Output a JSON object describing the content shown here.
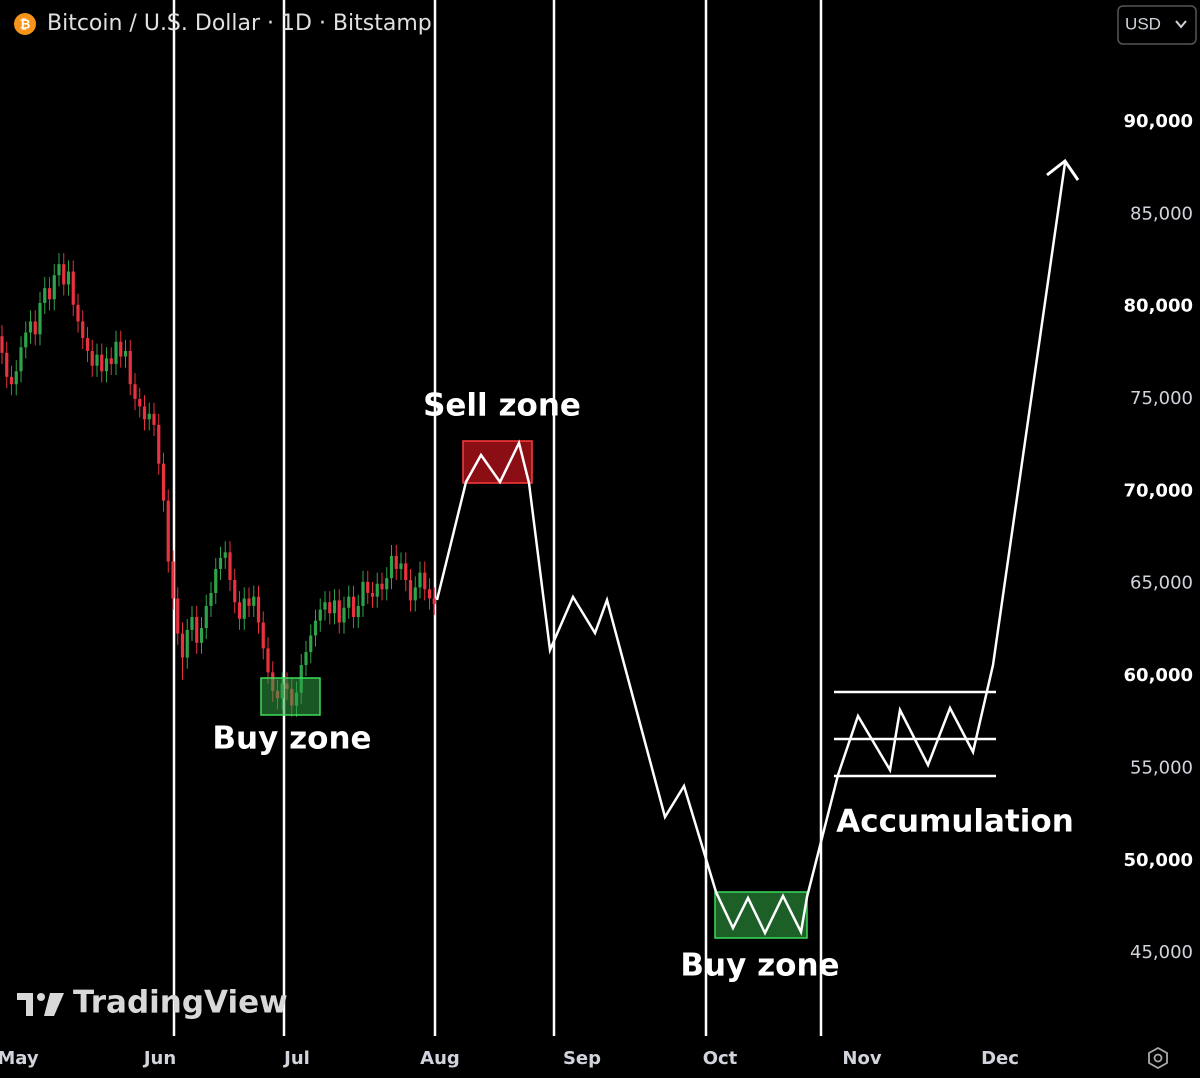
{
  "chart_data": {
    "type": "candlestick",
    "title": "Bitcoin / U.S. Dollar · 1D · Bitstamp",
    "currency": "USD",
    "categories": [
      "May",
      "Jun",
      "Jul",
      "Aug",
      "Sep",
      "Oct",
      "Nov",
      "Dec"
    ],
    "ylim": [
      40300,
      96600
    ],
    "yticks": [
      {
        "value": 45000,
        "label": "45,000"
      },
      {
        "value": 50000,
        "label": "50,000"
      },
      {
        "value": 55000,
        "label": "55,000"
      },
      {
        "value": 60000,
        "label": "60,000"
      },
      {
        "value": 65000,
        "label": "65,000"
      },
      {
        "value": 70000,
        "label": "70,000"
      },
      {
        "value": 75000,
        "label": "75,000"
      },
      {
        "value": 80000,
        "label": "80,000"
      },
      {
        "value": 85000,
        "label": "85,000"
      },
      {
        "value": 90000,
        "label": "90,000"
      }
    ],
    "up_color": "#2fa34a",
    "down_color": "#e8323f",
    "candles": [
      [
        78400,
        79000,
        76900,
        77500
      ],
      [
        77500,
        78100,
        75600,
        76200
      ],
      [
        76200,
        76800,
        75200,
        75800
      ],
      [
        75800,
        77100,
        75200,
        76500
      ],
      [
        76500,
        78400,
        75900,
        77800
      ],
      [
        77800,
        79200,
        77200,
        78600
      ],
      [
        78600,
        79800,
        78000,
        79200
      ],
      [
        79200,
        79800,
        77900,
        78500
      ],
      [
        78500,
        80800,
        77900,
        80200
      ],
      [
        80200,
        81600,
        79600,
        81000
      ],
      [
        81000,
        81600,
        79800,
        80400
      ],
      [
        80400,
        82300,
        79800,
        81700
      ],
      [
        81700,
        82900,
        81100,
        82300
      ],
      [
        82300,
        82900,
        80600,
        81200
      ],
      [
        81200,
        82500,
        80600,
        81900
      ],
      [
        81900,
        82500,
        79500,
        80100
      ],
      [
        80100,
        80700,
        78600,
        79200
      ],
      [
        79200,
        79800,
        77700,
        78300
      ],
      [
        78300,
        78900,
        77000,
        77600
      ],
      [
        77600,
        78200,
        76200,
        76800
      ],
      [
        76800,
        78000,
        76200,
        77400
      ],
      [
        77400,
        78000,
        75900,
        76500
      ],
      [
        76500,
        77800,
        75900,
        77200
      ],
      [
        77200,
        77800,
        76300,
        76900
      ],
      [
        76900,
        78700,
        76300,
        78100
      ],
      [
        78100,
        78700,
        76700,
        77300
      ],
      [
        77300,
        78200,
        76700,
        77600
      ],
      [
        77600,
        78200,
        75200,
        75800
      ],
      [
        75800,
        76400,
        74400,
        75000
      ],
      [
        75000,
        75600,
        74000,
        74600
      ],
      [
        74600,
        75200,
        73300,
        73900
      ],
      [
        73900,
        74800,
        73300,
        74200
      ],
      [
        74200,
        74800,
        73000,
        73600
      ],
      [
        73600,
        74200,
        70900,
        71500
      ],
      [
        71500,
        72100,
        68900,
        69500
      ],
      [
        69500,
        70100,
        65600,
        66200
      ],
      [
        66200,
        66800,
        63600,
        64200
      ],
      [
        64200,
        64800,
        61700,
        62300
      ],
      [
        62300,
        62900,
        59800,
        61000
      ],
      [
        61000,
        63100,
        60400,
        62500
      ],
      [
        62500,
        63800,
        61900,
        63200
      ],
      [
        63200,
        63800,
        61200,
        61800
      ],
      [
        61800,
        63200,
        61200,
        62600
      ],
      [
        62600,
        64400,
        62000,
        63800
      ],
      [
        63800,
        65100,
        63200,
        64500
      ],
      [
        64500,
        66400,
        63900,
        65800
      ],
      [
        65800,
        67000,
        65200,
        66400
      ],
      [
        66400,
        67300,
        65800,
        66700
      ],
      [
        66700,
        67300,
        64600,
        65200
      ],
      [
        65200,
        65800,
        63400,
        64000
      ],
      [
        64000,
        64600,
        62500,
        63100
      ],
      [
        63100,
        64800,
        62500,
        64200
      ],
      [
        64200,
        64800,
        63200,
        63800
      ],
      [
        63800,
        64900,
        63200,
        64300
      ],
      [
        64300,
        64900,
        62300,
        62900
      ],
      [
        62900,
        63500,
        60900,
        61500
      ],
      [
        61500,
        62100,
        59600,
        60200
      ],
      [
        60200,
        60800,
        58600,
        59200
      ],
      [
        59200,
        59800,
        58200,
        58800
      ],
      [
        58800,
        60200,
        58200,
        59600
      ],
      [
        59600,
        60200,
        58700,
        59300
      ],
      [
        59300,
        59900,
        57800,
        58400
      ],
      [
        58400,
        59700,
        57800,
        59100
      ],
      [
        59100,
        61200,
        58500,
        60600
      ],
      [
        60600,
        61900,
        60000,
        61300
      ],
      [
        61300,
        62800,
        60700,
        62200
      ],
      [
        62200,
        63600,
        61600,
        63000
      ],
      [
        63000,
        64200,
        62400,
        63600
      ],
      [
        63600,
        64600,
        63000,
        64000
      ],
      [
        64000,
        64600,
        62800,
        63400
      ],
      [
        63400,
        64700,
        62800,
        64100
      ],
      [
        64100,
        64700,
        62300,
        62900
      ],
      [
        62900,
        64300,
        62300,
        63700
      ],
      [
        63700,
        64900,
        63100,
        64300
      ],
      [
        64300,
        64900,
        62600,
        63200
      ],
      [
        63200,
        64400,
        62600,
        63800
      ],
      [
        63800,
        65700,
        63200,
        65100
      ],
      [
        65100,
        65700,
        63900,
        64500
      ],
      [
        64500,
        65100,
        63700,
        64300
      ],
      [
        64300,
        65600,
        63700,
        65000
      ],
      [
        65000,
        65600,
        64100,
        64700
      ],
      [
        64700,
        65900,
        64100,
        65300
      ],
      [
        65300,
        67100,
        64700,
        66500
      ],
      [
        66500,
        67100,
        65200,
        65800
      ],
      [
        65800,
        66700,
        65200,
        66100
      ],
      [
        66100,
        66700,
        64600,
        65200
      ],
      [
        65200,
        65800,
        63500,
        64100
      ],
      [
        64100,
        65400,
        63500,
        64800
      ],
      [
        64800,
        66200,
        64200,
        65600
      ],
      [
        65600,
        66200,
        64100,
        64700
      ],
      [
        64700,
        65300,
        63600,
        64200
      ],
      [
        64200,
        64800,
        63300,
        63900
      ]
    ],
    "annotations": {
      "sell_zone": "Sell zone",
      "buy_zone_1": "Buy zone",
      "buy_zone_2": "Buy zone",
      "accumulation": "Accumulation"
    },
    "watermark": "TradingView"
  }
}
